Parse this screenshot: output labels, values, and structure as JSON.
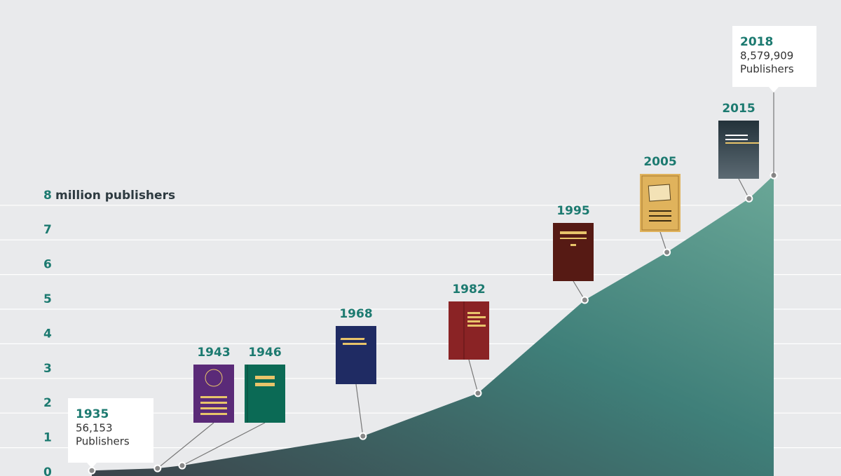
{
  "chart_data": {
    "type": "area",
    "y_unit": "million publishers",
    "callout_unit": "Publishers",
    "x": [
      1935,
      1943,
      1946,
      1968,
      1982,
      1995,
      2005,
      2015,
      2018
    ],
    "values": [
      0.056153,
      0.12,
      0.2,
      1.05,
      2.29,
      4.98,
      6.36,
      7.91,
      8.579909
    ],
    "value_labels": [
      "56,153",
      null,
      null,
      null,
      null,
      null,
      null,
      null,
      "8,579,909"
    ],
    "color": "#4a9a8f",
    "xlim": [
      1935,
      2018
    ],
    "ylim": [
      0,
      9
    ],
    "yticks": [
      0,
      1,
      2,
      3,
      4,
      5,
      6,
      7,
      8
    ],
    "grid": true
  }
}
